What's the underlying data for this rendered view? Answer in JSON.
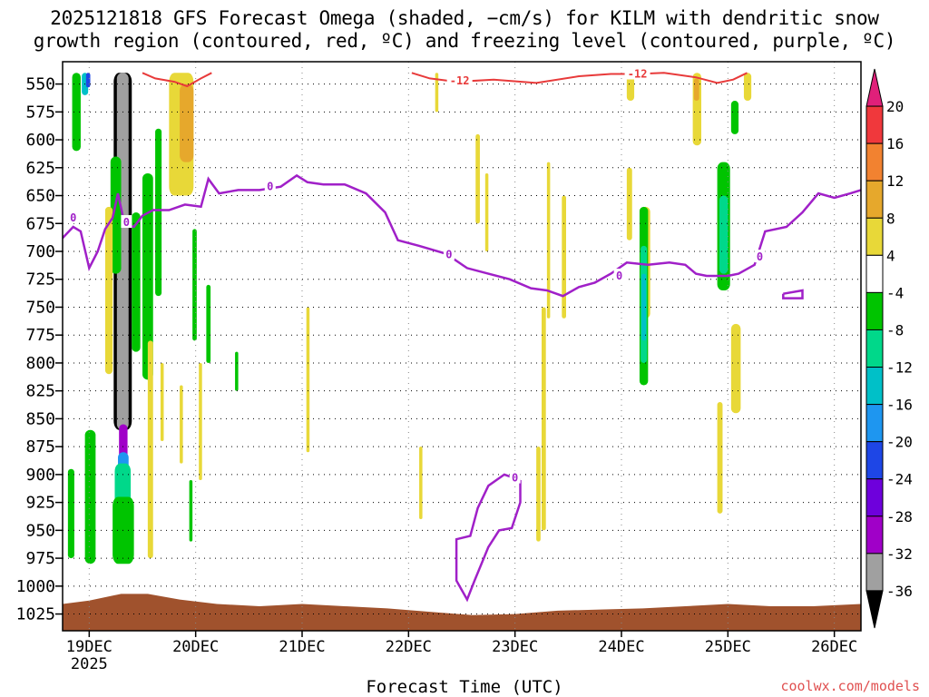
{
  "header": {
    "title_line1": "2025121818 GFS Forecast Omega (shaded, −cm/s) for KILM with dendritic snow",
    "title_line2": "growth region (contoured, red, ºC) and freezing level (contoured, purple, ºC)"
  },
  "footer": {
    "xlabel": "Forecast Time (UTC)",
    "credit": "coolwx.com/models"
  },
  "chart_data": {
    "type": "heatmap",
    "y_axis": {
      "unit": "hPa",
      "range": [
        530,
        1040
      ],
      "inverted": true,
      "ticks": [
        550,
        575,
        600,
        625,
        650,
        675,
        700,
        725,
        750,
        775,
        800,
        825,
        850,
        875,
        900,
        925,
        950,
        975,
        1000,
        1025
      ]
    },
    "x_axis": {
      "start_day": 18.75,
      "end_day": 26.25,
      "tick_days": [
        19,
        20,
        21,
        22,
        23,
        24,
        25,
        26
      ],
      "tick_labels": [
        "19DEC",
        "20DEC",
        "21DEC",
        "22DEC",
        "23DEC",
        "24DEC",
        "25DEC",
        "26DEC"
      ],
      "year_label": "2025"
    },
    "grid": "dotted",
    "colorbar": {
      "labels": [
        20,
        16,
        12,
        8,
        4,
        -4,
        -8,
        -12,
        -16,
        -20,
        -24,
        -28,
        -32,
        -36
      ],
      "bins": [
        {
          "color": "#e0207a",
          "shape": "arrow-up"
        },
        {
          "color": "#f0383c"
        },
        {
          "color": "#f28230"
        },
        {
          "color": "#e6a82c"
        },
        {
          "color": "#e8d838"
        },
        {
          "color": "#ffffff"
        },
        {
          "color": "#00c400"
        },
        {
          "color": "#00d88a"
        },
        {
          "color": "#00c0c8"
        },
        {
          "color": "#1e96f0"
        },
        {
          "color": "#1e46e6"
        },
        {
          "color": "#6e00dc"
        },
        {
          "color": "#a000c8"
        },
        {
          "color": "#a0a0a0"
        },
        {
          "color": "#000000",
          "shape": "arrow-down"
        }
      ]
    },
    "omega_regions": [
      {
        "value": -36,
        "color": "#000000",
        "day": [
          19.23,
          19.4
        ],
        "p": [
          540,
          860
        ]
      },
      {
        "value": -32,
        "color": "#a0a0a0",
        "day": [
          19.26,
          19.37
        ],
        "p": [
          540,
          860
        ]
      },
      {
        "value": -28,
        "color": "#a000c8",
        "day": [
          19.28,
          19.36
        ],
        "p": [
          855,
          895
        ]
      },
      {
        "value": -16,
        "color": "#1e96f0",
        "day": [
          19.27,
          19.37
        ],
        "p": [
          880,
          930
        ]
      },
      {
        "value": -8,
        "color": "#00d88a",
        "day": [
          19.24,
          19.39
        ],
        "p": [
          890,
          945
        ]
      },
      {
        "value": -4,
        "color": "#00c400",
        "day": [
          19.22,
          19.42
        ],
        "p": [
          920,
          980
        ]
      },
      {
        "value": -4,
        "color": "#00c400",
        "day": [
          18.84,
          18.92
        ],
        "p": [
          540,
          610
        ]
      },
      {
        "value": -12,
        "color": "#00c0c8",
        "day": [
          18.93,
          18.99
        ],
        "p": [
          540,
          560
        ]
      },
      {
        "value": -20,
        "color": "#1e46e6",
        "day": [
          18.97,
          19.01
        ],
        "p": [
          540,
          553
        ]
      },
      {
        "value": -4,
        "color": "#00c400",
        "day": [
          18.8,
          18.86
        ],
        "p": [
          895,
          975
        ]
      },
      {
        "value": -4,
        "color": "#00c400",
        "day": [
          18.96,
          19.06
        ],
        "p": [
          860,
          980
        ]
      },
      {
        "value": -4,
        "color": "#00c400",
        "day": [
          19.2,
          19.3
        ],
        "p": [
          615,
          720
        ]
      },
      {
        "value": -4,
        "color": "#00c400",
        "day": [
          19.4,
          19.48
        ],
        "p": [
          665,
          790
        ]
      },
      {
        "value": -4,
        "color": "#00c400",
        "day": [
          19.5,
          19.6
        ],
        "p": [
          630,
          815
        ]
      },
      {
        "value": -4,
        "color": "#00c400",
        "day": [
          19.62,
          19.68
        ],
        "p": [
          590,
          740
        ]
      },
      {
        "value": -4,
        "color": "#00c400",
        "day": [
          19.97,
          20.01
        ],
        "p": [
          680,
          780
        ]
      },
      {
        "value": -4,
        "color": "#00c400",
        "day": [
          20.1,
          20.14
        ],
        "p": [
          730,
          800
        ]
      },
      {
        "value": -4,
        "color": "#00c400",
        "day": [
          20.37,
          20.4
        ],
        "p": [
          790,
          825
        ]
      },
      {
        "value": -4,
        "color": "#00c400",
        "day": [
          19.94,
          19.97
        ],
        "p": [
          905,
          960
        ]
      },
      {
        "value": 4,
        "color": "#e8d838",
        "day": [
          19.75,
          19.98
        ],
        "p": [
          540,
          650
        ]
      },
      {
        "value": 8,
        "color": "#e6a82c",
        "day": [
          19.85,
          19.98
        ],
        "p": [
          550,
          620
        ]
      },
      {
        "value": 4,
        "color": "#e8d838",
        "day": [
          19.15,
          19.22
        ],
        "p": [
          660,
          810
        ]
      },
      {
        "value": 4,
        "color": "#e8d838",
        "day": [
          19.55,
          19.6
        ],
        "p": [
          780,
          975
        ]
      },
      {
        "value": 4,
        "color": "#e8d838",
        "day": [
          19.67,
          19.7
        ],
        "p": [
          800,
          870
        ]
      },
      {
        "value": 4,
        "color": "#e8d838",
        "day": [
          19.85,
          19.88
        ],
        "p": [
          820,
          890
        ]
      },
      {
        "value": 4,
        "color": "#e8d838",
        "day": [
          20.03,
          20.06
        ],
        "p": [
          800,
          905
        ]
      },
      {
        "value": 4,
        "color": "#e8d838",
        "day": [
          21.04,
          21.07
        ],
        "p": [
          750,
          880
        ]
      },
      {
        "value": 4,
        "color": "#e8d838",
        "day": [
          22.1,
          22.13
        ],
        "p": [
          875,
          940
        ]
      },
      {
        "value": 4,
        "color": "#e8d838",
        "day": [
          22.25,
          22.28
        ],
        "p": [
          540,
          575
        ]
      },
      {
        "value": 4,
        "color": "#e8d838",
        "day": [
          22.63,
          22.67
        ],
        "p": [
          595,
          675
        ]
      },
      {
        "value": 4,
        "color": "#e8d838",
        "day": [
          22.72,
          22.75
        ],
        "p": [
          630,
          700
        ]
      },
      {
        "value": 4,
        "color": "#e8d838",
        "day": [
          23.2,
          23.24
        ],
        "p": [
          875,
          960
        ]
      },
      {
        "value": 4,
        "color": "#e8d838",
        "day": [
          23.3,
          23.33
        ],
        "p": [
          620,
          760
        ]
      },
      {
        "value": 4,
        "color": "#e8d838",
        "day": [
          23.44,
          23.48
        ],
        "p": [
          650,
          760
        ]
      },
      {
        "value": 4,
        "color": "#e8d838",
        "day": [
          23.25,
          23.29
        ],
        "p": [
          750,
          950
        ]
      },
      {
        "value": 4,
        "color": "#e8d838",
        "day": [
          24.05,
          24.12
        ],
        "p": [
          540,
          565
        ]
      },
      {
        "value": 4,
        "color": "#e8d838",
        "day": [
          24.05,
          24.1
        ],
        "p": [
          625,
          690
        ]
      },
      {
        "value": 4,
        "color": "#e8d838",
        "day": [
          24.18,
          24.27
        ],
        "p": [
          660,
          760
        ]
      },
      {
        "value": 4,
        "color": "#e8d838",
        "day": [
          24.67,
          24.75
        ],
        "p": [
          540,
          605
        ]
      },
      {
        "value": 8,
        "color": "#e6a82c",
        "day": [
          24.68,
          24.73
        ],
        "p": [
          545,
          565
        ]
      },
      {
        "value": 4,
        "color": "#e8d838",
        "day": [
          24.9,
          24.95
        ],
        "p": [
          835,
          935
        ]
      },
      {
        "value": 4,
        "color": "#e8d838",
        "day": [
          25.03,
          25.12
        ],
        "p": [
          765,
          845
        ]
      },
      {
        "value": 4,
        "color": "#e8d838",
        "day": [
          25.15,
          25.22
        ],
        "p": [
          540,
          565
        ]
      },
      {
        "value": -4,
        "color": "#00c400",
        "day": [
          24.17,
          24.25
        ],
        "p": [
          660,
          820
        ]
      },
      {
        "value": -8,
        "color": "#00d88a",
        "day": [
          24.18,
          24.24
        ],
        "p": [
          695,
          800
        ]
      },
      {
        "value": -12,
        "color": "#00c0c8",
        "day": [
          24.19,
          24.23
        ],
        "p": [
          720,
          780
        ]
      },
      {
        "value": -4,
        "color": "#00c400",
        "day": [
          24.9,
          25.02
        ],
        "p": [
          620,
          735
        ]
      },
      {
        "value": -8,
        "color": "#00d88a",
        "day": [
          24.92,
          25.0
        ],
        "p": [
          650,
          720
        ]
      },
      {
        "value": -4,
        "color": "#00c400",
        "day": [
          25.03,
          25.1
        ],
        "p": [
          565,
          595
        ]
      }
    ],
    "surface_terrain": {
      "color": "#a0522d",
      "base_p": 1040,
      "top_p": [
        [
          18.75,
          1016
        ],
        [
          19.0,
          1013
        ],
        [
          19.3,
          1007
        ],
        [
          19.55,
          1007
        ],
        [
          19.85,
          1012
        ],
        [
          20.2,
          1016
        ],
        [
          20.6,
          1018
        ],
        [
          21.0,
          1016
        ],
        [
          21.4,
          1018
        ],
        [
          21.8,
          1020
        ],
        [
          22.2,
          1023
        ],
        [
          22.6,
          1026
        ],
        [
          23.0,
          1025
        ],
        [
          23.4,
          1022
        ],
        [
          23.8,
          1021
        ],
        [
          24.2,
          1020
        ],
        [
          24.6,
          1018
        ],
        [
          25.0,
          1016
        ],
        [
          25.4,
          1018
        ],
        [
          25.8,
          1018
        ],
        [
          26.25,
          1016
        ]
      ]
    },
    "dendritic_growth_contour": {
      "level_label": "-12",
      "color": "#e83a3a",
      "segments": [
        [
          [
            19.5,
            540
          ],
          [
            19.62,
            545
          ],
          [
            19.8,
            548
          ],
          [
            19.92,
            552
          ],
          [
            20.05,
            545
          ],
          [
            20.15,
            540
          ]
        ],
        [
          [
            22.03,
            540
          ],
          [
            22.2,
            545
          ],
          [
            22.45,
            548
          ],
          [
            22.8,
            546
          ],
          [
            23.2,
            549
          ],
          [
            23.6,
            543
          ],
          [
            23.9,
            541
          ],
          [
            24.15,
            541
          ],
          [
            24.4,
            540
          ],
          [
            24.7,
            544
          ],
          [
            24.9,
            549
          ],
          [
            25.05,
            546
          ],
          [
            25.18,
            540
          ]
        ]
      ],
      "labels": [
        {
          "day": 22.48,
          "p": 547
        },
        {
          "day": 24.15,
          "p": 541
        }
      ]
    },
    "freezing_level_contour": {
      "level_label": "0",
      "color": "#a020c8",
      "main_line": [
        [
          18.75,
          688
        ],
        [
          18.85,
          678
        ],
        [
          18.92,
          682
        ],
        [
          19.0,
          715
        ],
        [
          19.08,
          700
        ],
        [
          19.15,
          680
        ],
        [
          19.22,
          670
        ],
        [
          19.27,
          648
        ],
        [
          19.33,
          675
        ],
        [
          19.42,
          678
        ],
        [
          19.5,
          668
        ],
        [
          19.6,
          663
        ],
        [
          19.75,
          663
        ],
        [
          19.9,
          658
        ],
        [
          20.05,
          660
        ],
        [
          20.12,
          635
        ],
        [
          20.22,
          648
        ],
        [
          20.4,
          645
        ],
        [
          20.6,
          645
        ],
        [
          20.8,
          642
        ],
        [
          20.95,
          632
        ],
        [
          21.05,
          638
        ],
        [
          21.2,
          640
        ],
        [
          21.4,
          640
        ],
        [
          21.6,
          648
        ],
        [
          21.78,
          665
        ],
        [
          21.9,
          690
        ],
        [
          22.1,
          695
        ],
        [
          22.35,
          702
        ],
        [
          22.55,
          715
        ],
        [
          22.75,
          720
        ],
        [
          22.95,
          725
        ],
        [
          23.15,
          733
        ],
        [
          23.3,
          735
        ],
        [
          23.45,
          740
        ],
        [
          23.6,
          732
        ],
        [
          23.75,
          728
        ],
        [
          23.9,
          720
        ],
        [
          24.05,
          710
        ],
        [
          24.25,
          712
        ],
        [
          24.45,
          710
        ],
        [
          24.6,
          712
        ],
        [
          24.7,
          720
        ],
        [
          24.8,
          722
        ],
        [
          25.0,
          722
        ],
        [
          25.1,
          720
        ],
        [
          25.25,
          712
        ],
        [
          25.35,
          682
        ],
        [
          25.55,
          678
        ],
        [
          25.7,
          665
        ],
        [
          25.85,
          648
        ],
        [
          26.0,
          652
        ],
        [
          26.15,
          648
        ],
        [
          26.25,
          645
        ]
      ],
      "loop": [
        [
          23.05,
          905
        ],
        [
          22.9,
          900
        ],
        [
          22.75,
          910
        ],
        [
          22.65,
          930
        ],
        [
          22.58,
          955
        ],
        [
          22.45,
          958
        ],
        [
          22.45,
          995
        ],
        [
          22.55,
          1012
        ],
        [
          22.62,
          995
        ],
        [
          22.75,
          965
        ],
        [
          22.85,
          950
        ],
        [
          22.97,
          948
        ],
        [
          23.05,
          925
        ],
        [
          23.05,
          905
        ]
      ],
      "small_loop": [
        [
          25.52,
          738
        ],
        [
          25.7,
          735
        ],
        [
          25.7,
          742
        ],
        [
          25.52,
          742
        ],
        [
          25.52,
          738
        ]
      ],
      "labels": [
        {
          "day": 19.35,
          "p": 674
        },
        {
          "day": 20.7,
          "p": 642
        },
        {
          "day": 22.38,
          "p": 703
        },
        {
          "day": 23.98,
          "p": 722
        },
        {
          "day": 25.3,
          "p": 705
        },
        {
          "day": 23.0,
          "p": 903
        },
        {
          "day": 18.85,
          "p": 670
        }
      ]
    }
  }
}
